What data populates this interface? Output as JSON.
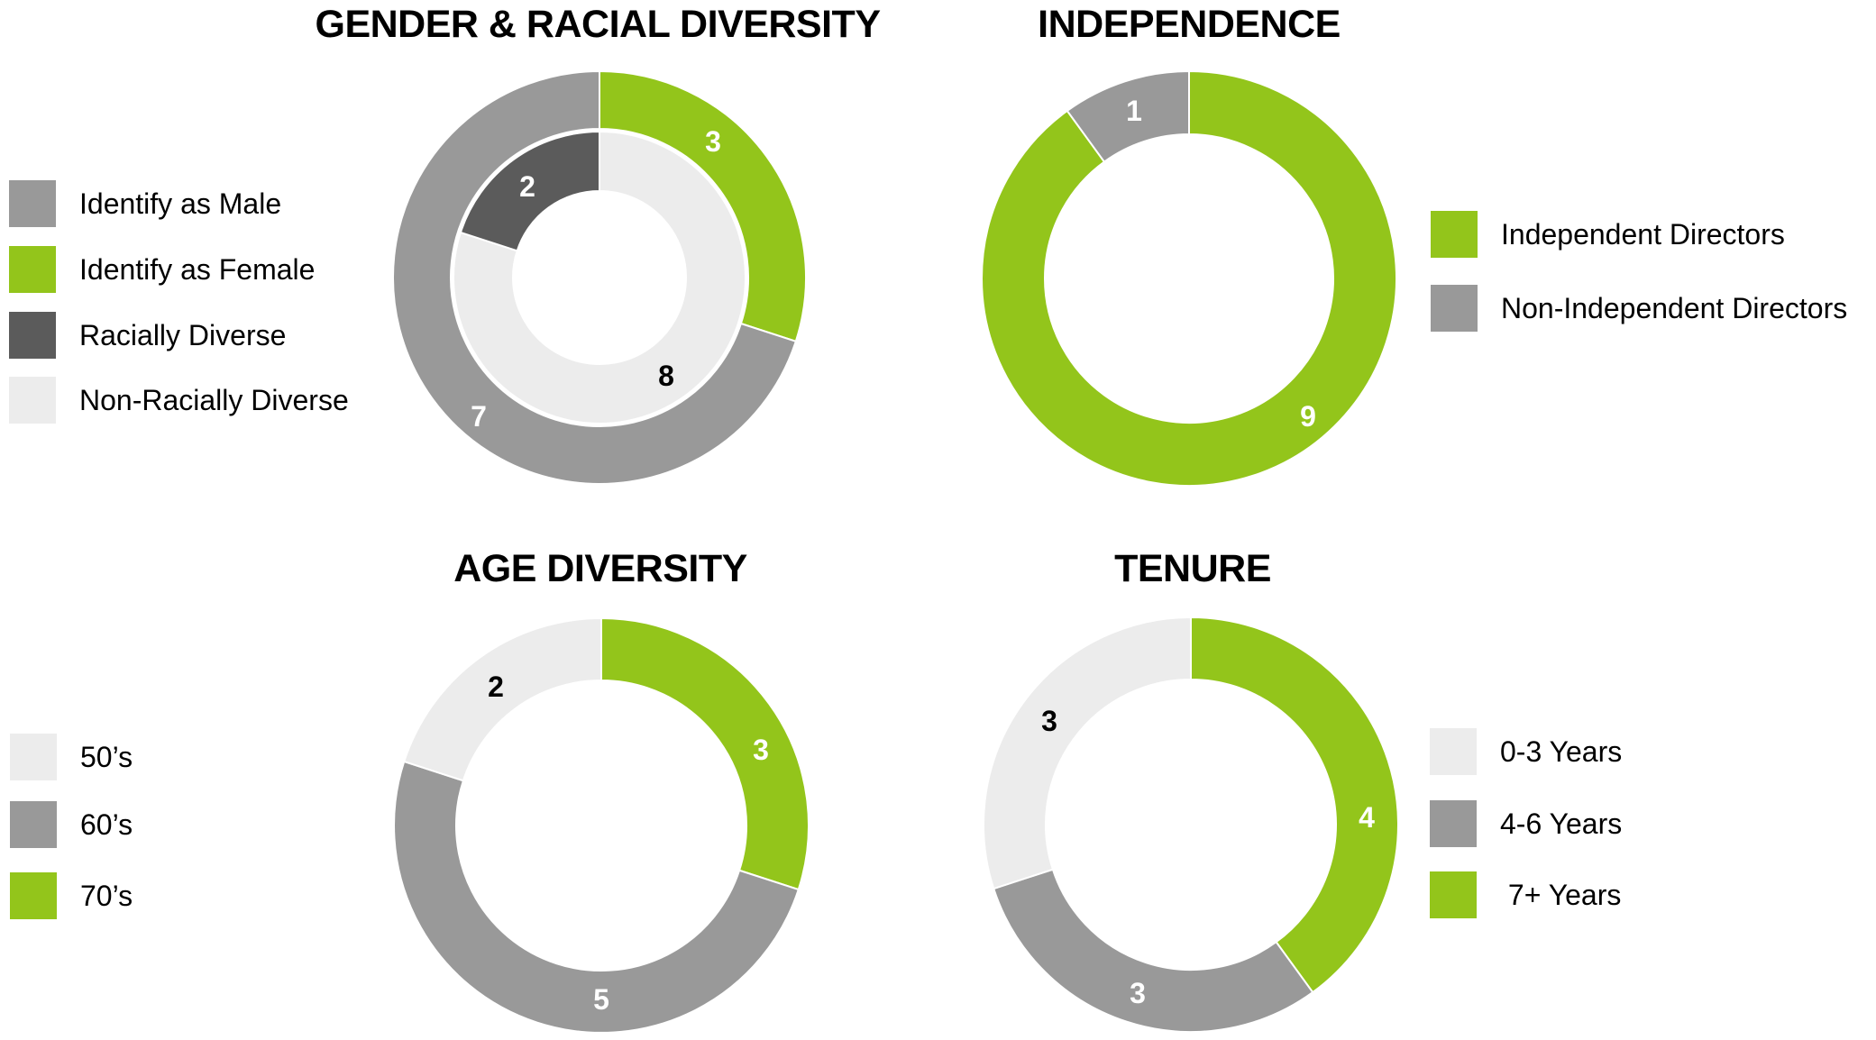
{
  "colors": {
    "green": "#93c51b",
    "mid_grey": "#999999",
    "dark_grey": "#5b5b5b",
    "light_grey": "#ececec",
    "separator": "#ffffff"
  },
  "charts": {
    "gender": {
      "title": "GENDER & RACIAL DIVERSITY",
      "legend": [
        {
          "label": "Identify as Male",
          "color": "#999999"
        },
        {
          "label": "Identify as Female",
          "color": "#93c51b"
        },
        {
          "label": "Racially Diverse",
          "color": "#5b5b5b"
        },
        {
          "label": "Non-Racially Diverse",
          "color": "#ececec"
        }
      ]
    },
    "independence": {
      "title": "INDEPENDENCE",
      "legend": [
        {
          "label": "Independent Directors",
          "color": "#93c51b"
        },
        {
          "label": "Non-Independent Directors",
          "color": "#999999"
        }
      ]
    },
    "age": {
      "title": "AGE DIVERSITY",
      "legend": [
        {
          "label": "50’s",
          "color": "#ececec"
        },
        {
          "label": "60’s",
          "color": "#999999"
        },
        {
          "label": "70’s",
          "color": "#93c51b"
        }
      ]
    },
    "tenure": {
      "title": "TENURE",
      "legend": [
        {
          "label": "0-3 Years",
          "color": "#ececec"
        },
        {
          "label": "4-6 Years",
          "color": "#999999"
        },
        {
          "label": " 7+ Years",
          "color": "#93c51b"
        }
      ]
    }
  },
  "chart_data": [
    {
      "type": "pie",
      "subtype": "nested-donut",
      "title": "GENDER & RACIAL DIVERSITY",
      "legend_position": "left",
      "rings": [
        {
          "name": "Gender (outer)",
          "categories": [
            "Identify as Female",
            "Identify as Male"
          ],
          "values": [
            3,
            7
          ],
          "colors": [
            "#93c51b",
            "#999999"
          ],
          "label_colors": [
            "#ffffff",
            "#ffffff"
          ]
        },
        {
          "name": "Racial (inner)",
          "categories": [
            "Non-Racially Diverse",
            "Racially Diverse"
          ],
          "values": [
            8,
            2
          ],
          "colors": [
            "#ececec",
            "#5b5b5b"
          ],
          "label_colors": [
            "#000000",
            "#ffffff"
          ]
        }
      ]
    },
    {
      "type": "pie",
      "subtype": "donut",
      "title": "INDEPENDENCE",
      "legend_position": "right",
      "categories": [
        "Independent Directors",
        "Non-Independent Directors"
      ],
      "values": [
        9,
        1
      ],
      "colors": [
        "#93c51b",
        "#999999"
      ],
      "label_colors": [
        "#ffffff",
        "#ffffff"
      ]
    },
    {
      "type": "pie",
      "subtype": "donut",
      "title": "AGE DIVERSITY",
      "legend_position": "left",
      "categories": [
        "70’s",
        "60’s",
        "50’s"
      ],
      "values": [
        3,
        5,
        2
      ],
      "colors": [
        "#93c51b",
        "#999999",
        "#ececec"
      ],
      "label_colors": [
        "#ffffff",
        "#ffffff",
        "#000000"
      ]
    },
    {
      "type": "pie",
      "subtype": "donut",
      "title": "TENURE",
      "legend_position": "right",
      "categories": [
        "7+ Years",
        "4-6 Years",
        "0-3 Years"
      ],
      "values": [
        4,
        3,
        3
      ],
      "colors": [
        "#93c51b",
        "#999999",
        "#ececec"
      ],
      "label_colors": [
        "#ffffff",
        "#ffffff",
        "#000000"
      ]
    }
  ]
}
